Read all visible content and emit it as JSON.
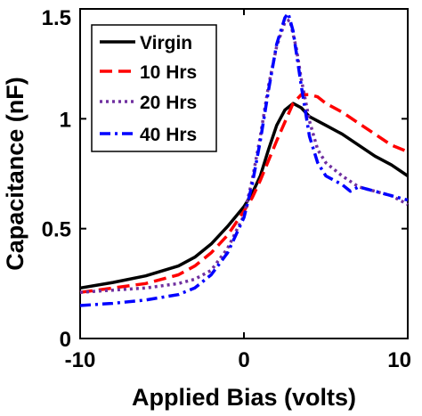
{
  "chart_data": {
    "type": "line",
    "title": "",
    "xlabel": "Applied Bias (volts)",
    "ylabel": "Capacitance (nF)",
    "xlim": [
      -10,
      10
    ],
    "ylim": [
      0,
      1.5
    ],
    "x_ticks": [
      -10,
      0,
      10
    ],
    "x_tick_labels": [
      "-10",
      "0",
      "10"
    ],
    "y_ticks": [
      0,
      0.5,
      1,
      1.5
    ],
    "y_tick_labels": [
      "0",
      "0.5",
      "1",
      "1.5"
    ],
    "grid": false,
    "legend_position": "top-left",
    "series": [
      {
        "name": "Virgin",
        "color": "#000000",
        "dash": "solid",
        "x": [
          -10,
          -8,
          -6,
          -4,
          -3,
          -2,
          -1,
          0,
          0.5,
          1,
          1.5,
          2,
          2.5,
          3,
          3.5,
          4,
          5,
          6,
          7,
          8,
          9,
          10
        ],
        "y": [
          0.23,
          0.255,
          0.285,
          0.33,
          0.37,
          0.43,
          0.51,
          0.6,
          0.66,
          0.74,
          0.86,
          0.97,
          1.04,
          1.07,
          1.05,
          1.01,
          0.97,
          0.93,
          0.88,
          0.83,
          0.79,
          0.74
        ]
      },
      {
        "name": "10 Hrs",
        "color": "#ff0000",
        "dash": "dashed",
        "x": [
          -10,
          -8,
          -6,
          -4,
          -3,
          -2,
          -1,
          0,
          0.5,
          1,
          2,
          3,
          3.5,
          4,
          4.5,
          5,
          6,
          7,
          8,
          9,
          10
        ],
        "y": [
          0.21,
          0.23,
          0.25,
          0.29,
          0.33,
          0.39,
          0.47,
          0.58,
          0.64,
          0.72,
          0.9,
          1.07,
          1.11,
          1.11,
          1.1,
          1.07,
          1.03,
          0.98,
          0.93,
          0.88,
          0.85
        ]
      },
      {
        "name": "20 Hrs",
        "color": "#7030a0",
        "dash": "dotted",
        "x": [
          -10,
          -8,
          -6,
          -4,
          -3,
          -2,
          -1,
          0,
          0.5,
          1,
          1.5,
          2,
          2.5,
          2.8,
          3.2,
          3.5,
          4,
          4.5,
          5,
          6,
          7,
          8,
          9,
          10
        ],
        "y": [
          0.21,
          0.22,
          0.23,
          0.25,
          0.27,
          0.31,
          0.41,
          0.56,
          0.72,
          0.92,
          1.15,
          1.33,
          1.44,
          1.45,
          1.32,
          1.18,
          0.99,
          0.86,
          0.8,
          0.74,
          0.69,
          0.67,
          0.65,
          0.61
        ]
      },
      {
        "name": "40 Hrs",
        "color": "#0000ff",
        "dash": "dashdot",
        "x": [
          -10,
          -8,
          -6,
          -4,
          -3,
          -2,
          -1,
          0,
          0.5,
          1,
          1.5,
          2,
          2.5,
          2.7,
          3,
          3.5,
          4,
          4.5,
          5,
          6,
          6.5,
          7,
          8,
          9,
          10
        ],
        "y": [
          0.15,
          0.16,
          0.175,
          0.2,
          0.23,
          0.29,
          0.39,
          0.55,
          0.7,
          0.9,
          1.13,
          1.34,
          1.46,
          1.48,
          1.4,
          1.15,
          0.92,
          0.8,
          0.74,
          0.7,
          0.67,
          0.69,
          0.67,
          0.65,
          0.63
        ]
      }
    ]
  }
}
